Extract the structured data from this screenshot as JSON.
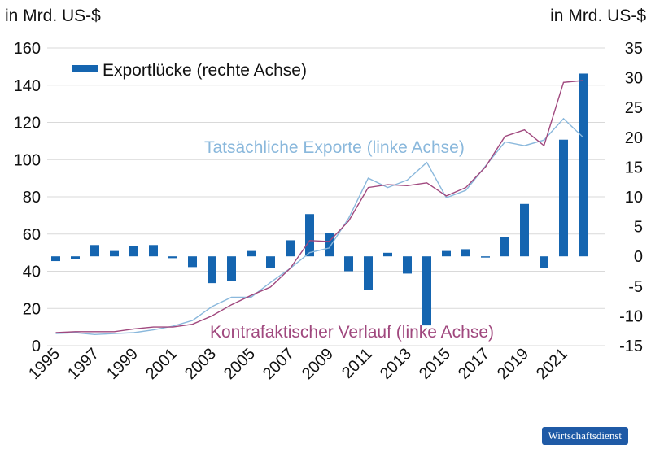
{
  "chart_data": {
    "type": "bar+line",
    "left_axis_unit": "in Mrd. US-$",
    "right_axis_unit": "in Mrd. US-$",
    "left_ylim": [
      0,
      160
    ],
    "left_ticks": [
      0,
      20,
      40,
      60,
      80,
      100,
      120,
      140,
      160
    ],
    "right_ylim": [
      -15,
      35
    ],
    "right_ticks": [
      -15,
      -10,
      -5,
      0,
      5,
      10,
      15,
      20,
      25,
      30,
      35
    ],
    "x_tick_labels": [
      "1995",
      "1997",
      "1999",
      "2001",
      "2003",
      "2005",
      "2007",
      "2009",
      "2011",
      "2013",
      "2015",
      "2017",
      "2019",
      "2021"
    ],
    "years": [
      1995,
      1996,
      1997,
      1998,
      1999,
      2000,
      2001,
      2002,
      2003,
      2004,
      2005,
      2006,
      2007,
      2008,
      2009,
      2010,
      2011,
      2012,
      2013,
      2014,
      2015,
      2016,
      2017,
      2018,
      2019,
      2020,
      2021,
      2022
    ],
    "grid": true,
    "series": [
      {
        "name": "Exportlücke (rechte Achse)",
        "kind": "bar",
        "axis": "right",
        "color": "#1565b0",
        "values": [
          -0.8,
          -0.5,
          1.9,
          0.9,
          1.7,
          1.9,
          -0.3,
          -1.8,
          -4.5,
          -4.1,
          0.9,
          -2.0,
          2.7,
          7.1,
          3.9,
          -2.5,
          -5.7,
          0.6,
          -2.9,
          -11.6,
          0.9,
          1.2,
          -0.2,
          3.2,
          8.8,
          -1.9,
          19.6,
          30.7
        ]
      },
      {
        "name": "Tatsächliche Exporte (linke Achse)",
        "kind": "line",
        "axis": "left",
        "color": "#8ab8dc",
        "values": [
          6.5,
          7.0,
          6.0,
          6.5,
          7.0,
          8.5,
          10.5,
          13.5,
          21.0,
          26.0,
          26.0,
          34.0,
          41.5,
          50.0,
          52.5,
          68.5,
          90.0,
          85.0,
          89.0,
          98.5,
          79.5,
          83.5,
          96.5,
          109.5,
          107.5,
          110.5,
          122.0,
          112.0
        ]
      },
      {
        "name": "Kontrafaktischer Verlauf (linke Achse)",
        "kind": "line",
        "axis": "left",
        "color": "#a0487e",
        "values": [
          7.0,
          7.5,
          7.5,
          7.5,
          9.0,
          10.0,
          10.0,
          11.5,
          16.0,
          22.0,
          27.0,
          31.5,
          41.5,
          56.5,
          56.0,
          67.0,
          85.0,
          86.5,
          86.0,
          87.5,
          80.5,
          85.0,
          96.0,
          112.5,
          116.0,
          107.5,
          141.5,
          142.5
        ]
      }
    ]
  },
  "branding": {
    "logo_text": "Wirtschaftsdienst"
  }
}
